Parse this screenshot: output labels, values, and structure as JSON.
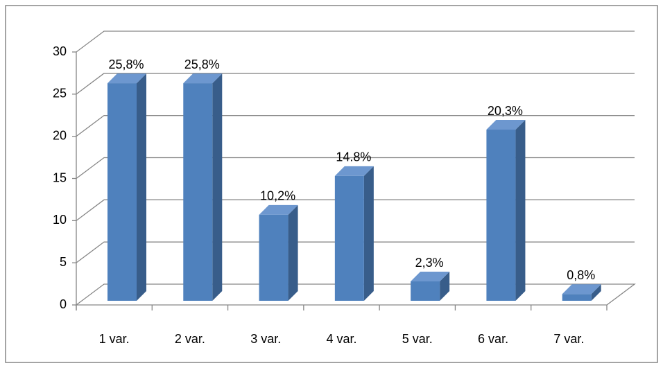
{
  "chart_data": {
    "type": "bar3d",
    "categories": [
      "1 var.",
      "2 var.",
      "3 var.",
      "4 var.",
      "5 var.",
      "6 var.",
      "7 var."
    ],
    "values": [
      25.8,
      25.8,
      10.2,
      14.8,
      2.3,
      20.3,
      0.8
    ],
    "value_labels": [
      "25,8%",
      "25,8%",
      "10,2%",
      "14.8%",
      "2,3%",
      "20,3%",
      "0,8%"
    ],
    "color": "#4f81bd",
    "ylim": [
      0,
      30
    ],
    "yticks": [
      0,
      5,
      10,
      15,
      20,
      25,
      30
    ],
    "grid": true
  }
}
